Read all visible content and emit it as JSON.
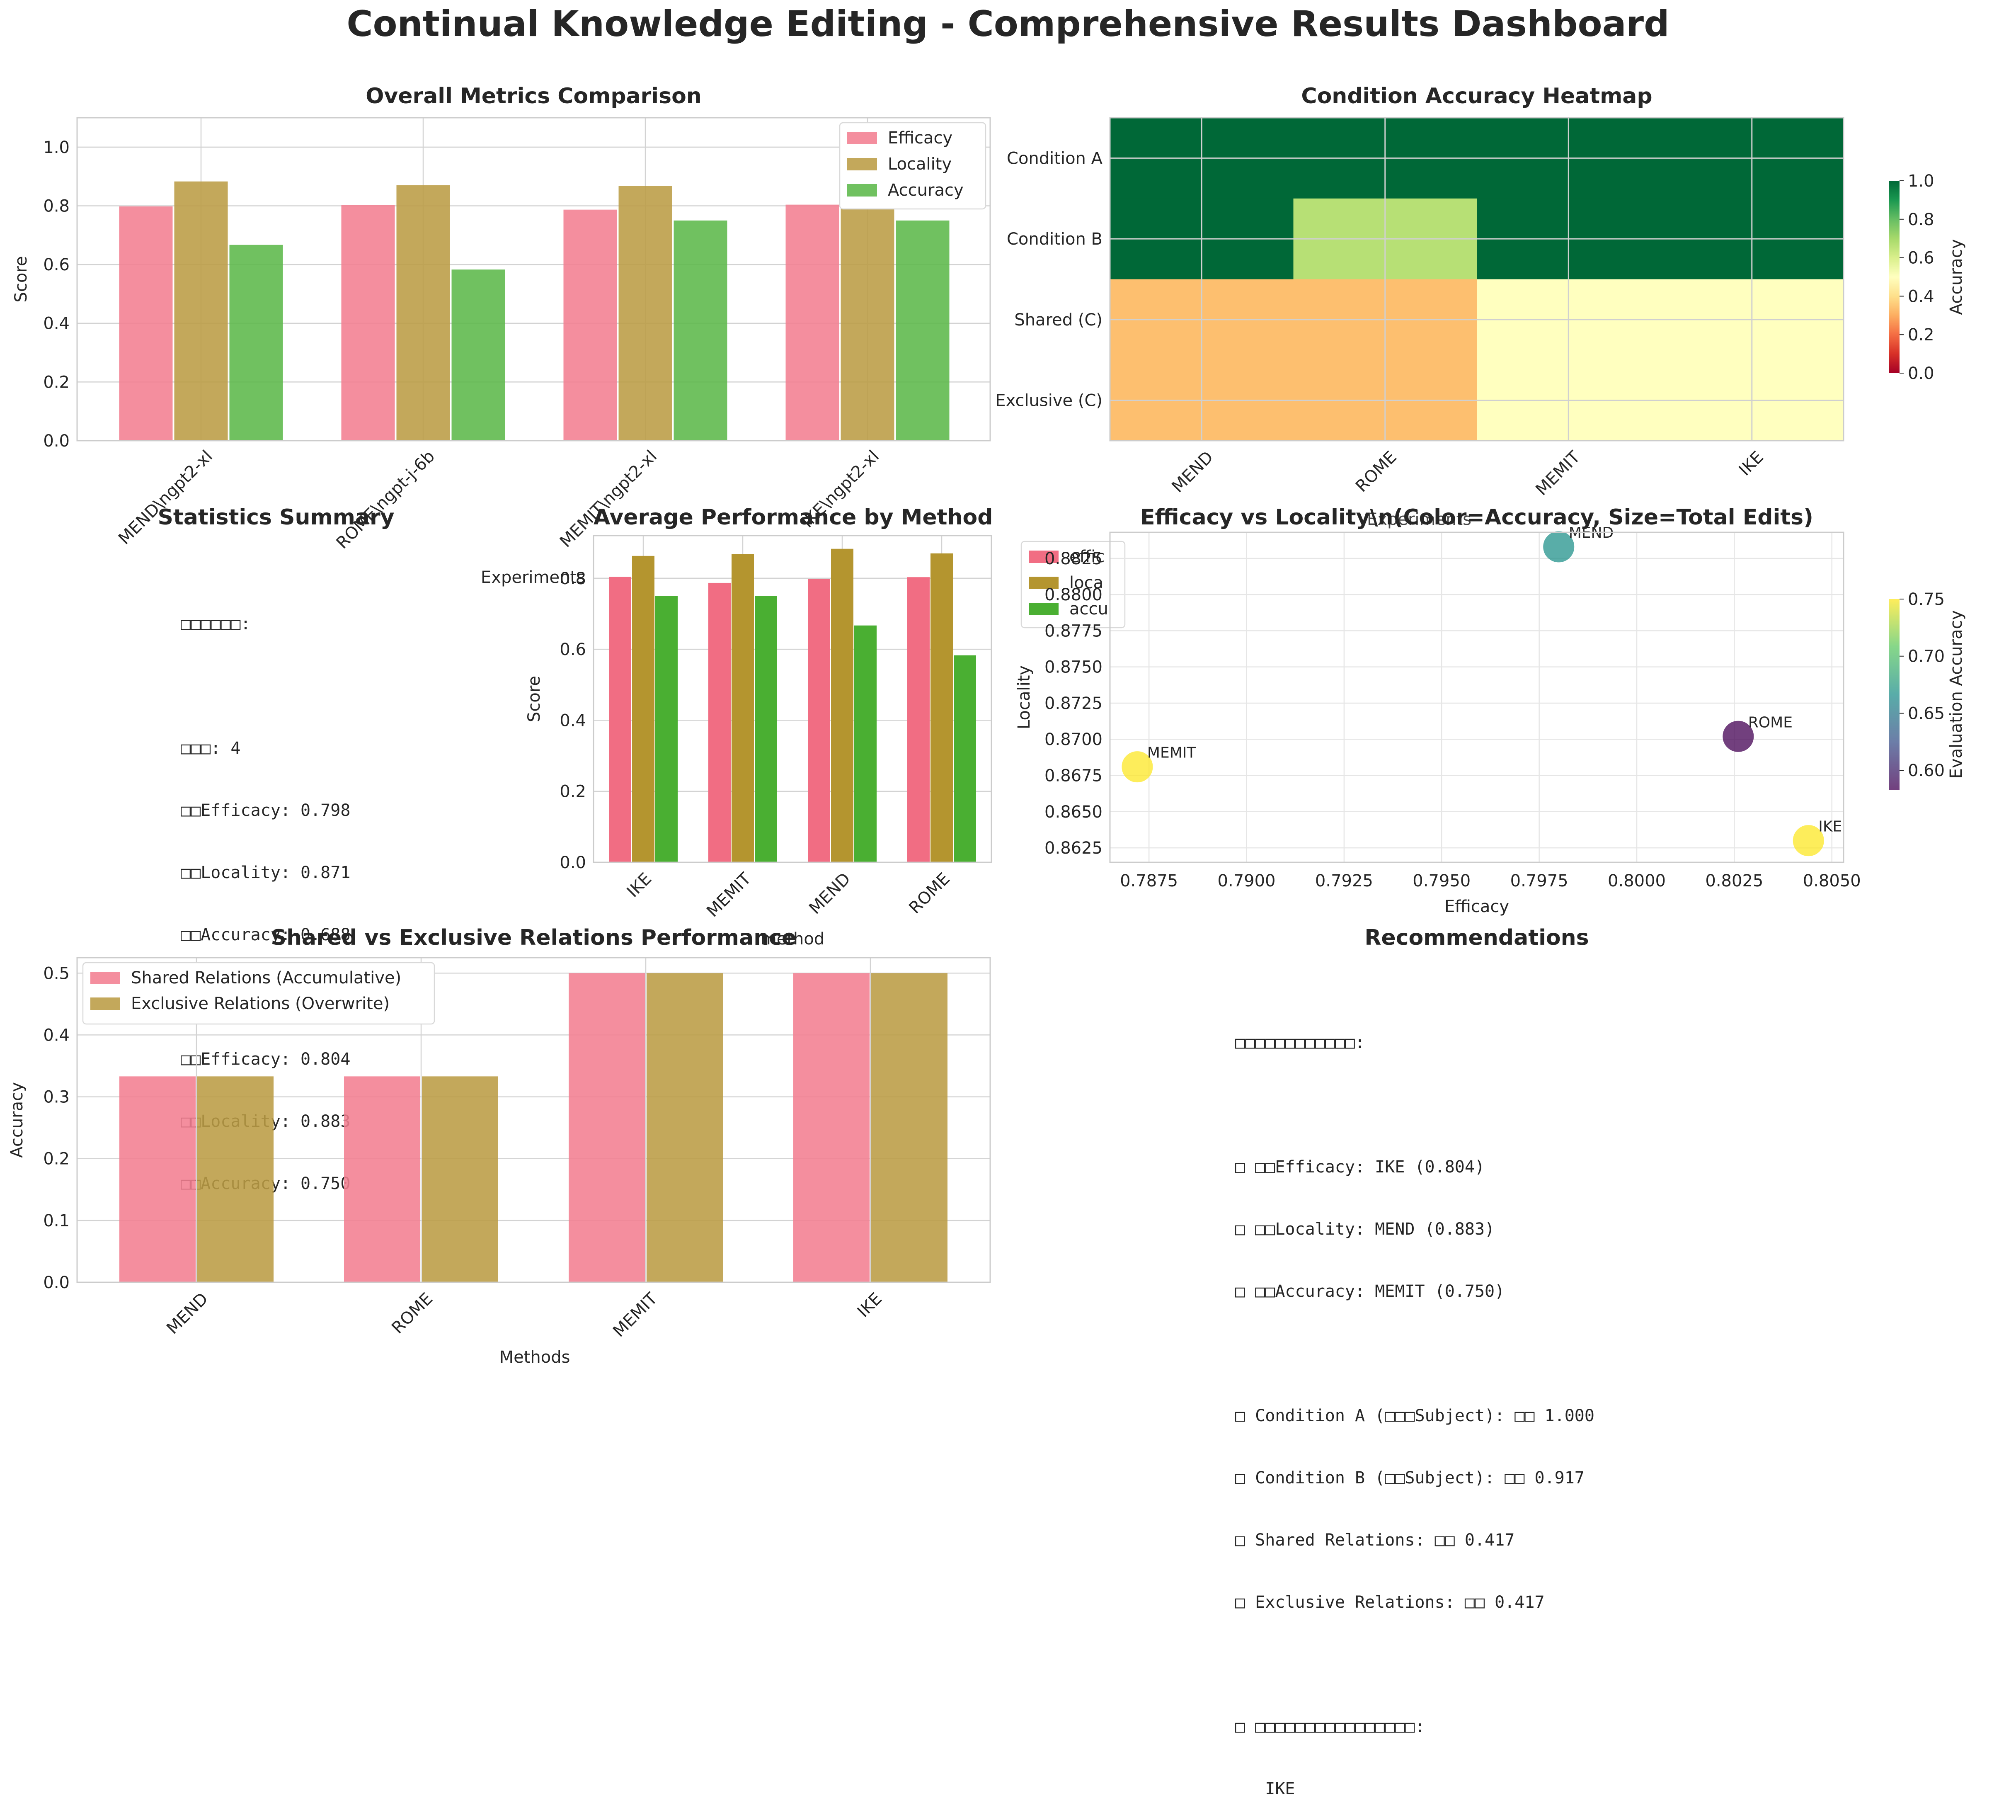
{
  "title": "Continual Knowledge Editing - Comprehensive Results Dashboard",
  "colors": {
    "pink": "#f37e91",
    "olive": "#bb9c44",
    "green": "#5cb84a",
    "pink_dark": "#f16d83",
    "olive_dark": "#b4952f",
    "green_dark": "#4aaf32",
    "grid": "#d3d3d3",
    "spine": "#cccccc",
    "text": "#262626"
  },
  "chart_data": [
    {
      "id": "overall",
      "type": "bar",
      "title": "Overall Metrics Comparison",
      "ylabel": "Score",
      "ylim": [
        0,
        1.1
      ],
      "yticks": [
        "0.0",
        "0.2",
        "0.4",
        "0.6",
        "0.8",
        "1.0"
      ],
      "categories": [
        "MEND\\ngpt2-xl",
        "ROME\\ngpt-j-6b",
        "MEMIT\\ngpt2-xl",
        "IKE\\ngpt2-xl"
      ],
      "series": [
        {
          "name": "Efficacy",
          "values": [
            0.798,
            0.803,
            0.787,
            0.804
          ]
        },
        {
          "name": "Locality",
          "values": [
            0.883,
            0.87,
            0.868,
            0.863
          ]
        },
        {
          "name": "Accuracy",
          "values": [
            0.667,
            0.583,
            0.75,
            0.75
          ]
        }
      ],
      "legend": "upper right"
    },
    {
      "id": "heatmap",
      "type": "heatmap",
      "title": "Condition Accuracy Heatmap",
      "rows": [
        "Condition A",
        "Condition B",
        "Shared (C)",
        "Exclusive (C)"
      ],
      "cols": [
        "MEND",
        "ROME",
        "MEMIT",
        "IKE"
      ],
      "values": [
        [
          1.0,
          1.0,
          1.0,
          1.0
        ],
        [
          1.0,
          0.667,
          1.0,
          1.0
        ],
        [
          0.333,
          0.333,
          0.5,
          0.5
        ],
        [
          0.333,
          0.333,
          0.5,
          0.5
        ]
      ],
      "colorbar_label": "Accuracy",
      "colorbar_ticks": [
        "0.0",
        "0.2",
        "0.4",
        "0.6",
        "0.8",
        "1.0"
      ],
      "vmin": 0,
      "vmax": 1
    },
    {
      "id": "avgperf",
      "type": "bar",
      "title": "Average Performance by Method",
      "ylabel": "Score",
      "xlabel": "method",
      "ylim": [
        0,
        0.92
      ],
      "yticks": [
        "0.0",
        "0.2",
        "0.4",
        "0.6",
        "0.8"
      ],
      "categories": [
        "IKE",
        "MEMIT",
        "MEND",
        "ROME"
      ],
      "series": [
        {
          "name": "efficacy",
          "values": [
            0.804,
            0.787,
            0.798,
            0.803
          ]
        },
        {
          "name": "locality",
          "values": [
            0.863,
            0.868,
            0.883,
            0.87
          ]
        },
        {
          "name": "accuracy",
          "values": [
            0.75,
            0.75,
            0.667,
            0.583
          ]
        }
      ],
      "legend_title": "Experiments",
      "legend_labels": [
        "effic",
        "loca",
        "accu"
      ]
    },
    {
      "id": "scatter",
      "type": "scatter",
      "title": "Efficacy vs Locality\\n(Color=Accuracy, Size=Total Edits)",
      "xlabel": "Efficacy",
      "ylabel": "Locality",
      "xlim": [
        0.7865,
        0.8053
      ],
      "ylim": [
        0.8615,
        0.8843
      ],
      "xticks": [
        "0.7875",
        "0.7900",
        "0.7925",
        "0.7950",
        "0.7975",
        "0.8000",
        "0.8025",
        "0.8050"
      ],
      "yticks": [
        "0.8625",
        "0.8650",
        "0.8675",
        "0.8700",
        "0.8725",
        "0.8750",
        "0.8775",
        "0.8800",
        "0.8825"
      ],
      "points": [
        {
          "label": "MEND",
          "x": 0.798,
          "y": 0.8833,
          "accuracy": 0.667
        },
        {
          "label": "ROME",
          "x": 0.8026,
          "y": 0.8702,
          "accuracy": 0.583
        },
        {
          "label": "MEMIT",
          "x": 0.7872,
          "y": 0.8681,
          "accuracy": 0.75
        },
        {
          "label": "IKE",
          "x": 0.8044,
          "y": 0.863,
          "accuracy": 0.75
        }
      ],
      "colorbar_label": "Evaluation Accuracy",
      "colorbar_range": [
        0.583,
        0.75
      ],
      "colorbar_ticks": [
        "0.60",
        "0.65",
        "0.70",
        "0.75"
      ],
      "overlap_text": "Experiments"
    },
    {
      "id": "sharedexcl",
      "type": "bar",
      "title": "Shared vs Exclusive Relations Performance",
      "ylabel": "Accuracy",
      "xlabel": "Methods",
      "ylim": [
        0,
        0.525
      ],
      "yticks": [
        "0.0",
        "0.1",
        "0.2",
        "0.3",
        "0.4",
        "0.5"
      ],
      "categories": [
        "MEND",
        "ROME",
        "MEMIT",
        "IKE"
      ],
      "series": [
        {
          "name": "Shared Relations (Accumulative)",
          "values": [
            0.333,
            0.333,
            0.5,
            0.5
          ]
        },
        {
          "name": "Exclusive Relations (Overwrite)",
          "values": [
            0.333,
            0.333,
            0.5,
            0.5
          ]
        }
      ],
      "legend": "upper left"
    }
  ],
  "stats": {
    "title": "Statistics Summary",
    "lines": [
      "□□□□□□:",
      "",
      "□□□: 4",
      "□□Efficacy: 0.798",
      "□□Locality: 0.871",
      "□□Accuracy: 0.688",
      "",
      "□□Efficacy: 0.804",
      "□□Locality: 0.883",
      "□□Accuracy: 0.750"
    ]
  },
  "recommendations": {
    "title": "Recommendations",
    "lines": [
      "□□□□□□□□□□□□:",
      "",
      "□ □□Efficacy: IKE (0.804)",
      "□ □□Locality: MEND (0.883)",
      "□ □□Accuracy: MEMIT (0.750)",
      "",
      "□ Condition A (□□□Subject): □□ 1.000",
      "□ Condition B (□□Subject): □□ 0.917",
      "□ Shared Relations: □□ 0.417",
      "□ Exclusive Relations: □□ 0.417",
      "",
      "□ □□□□□□□□□□□□□□□□:",
      "   IKE"
    ]
  }
}
